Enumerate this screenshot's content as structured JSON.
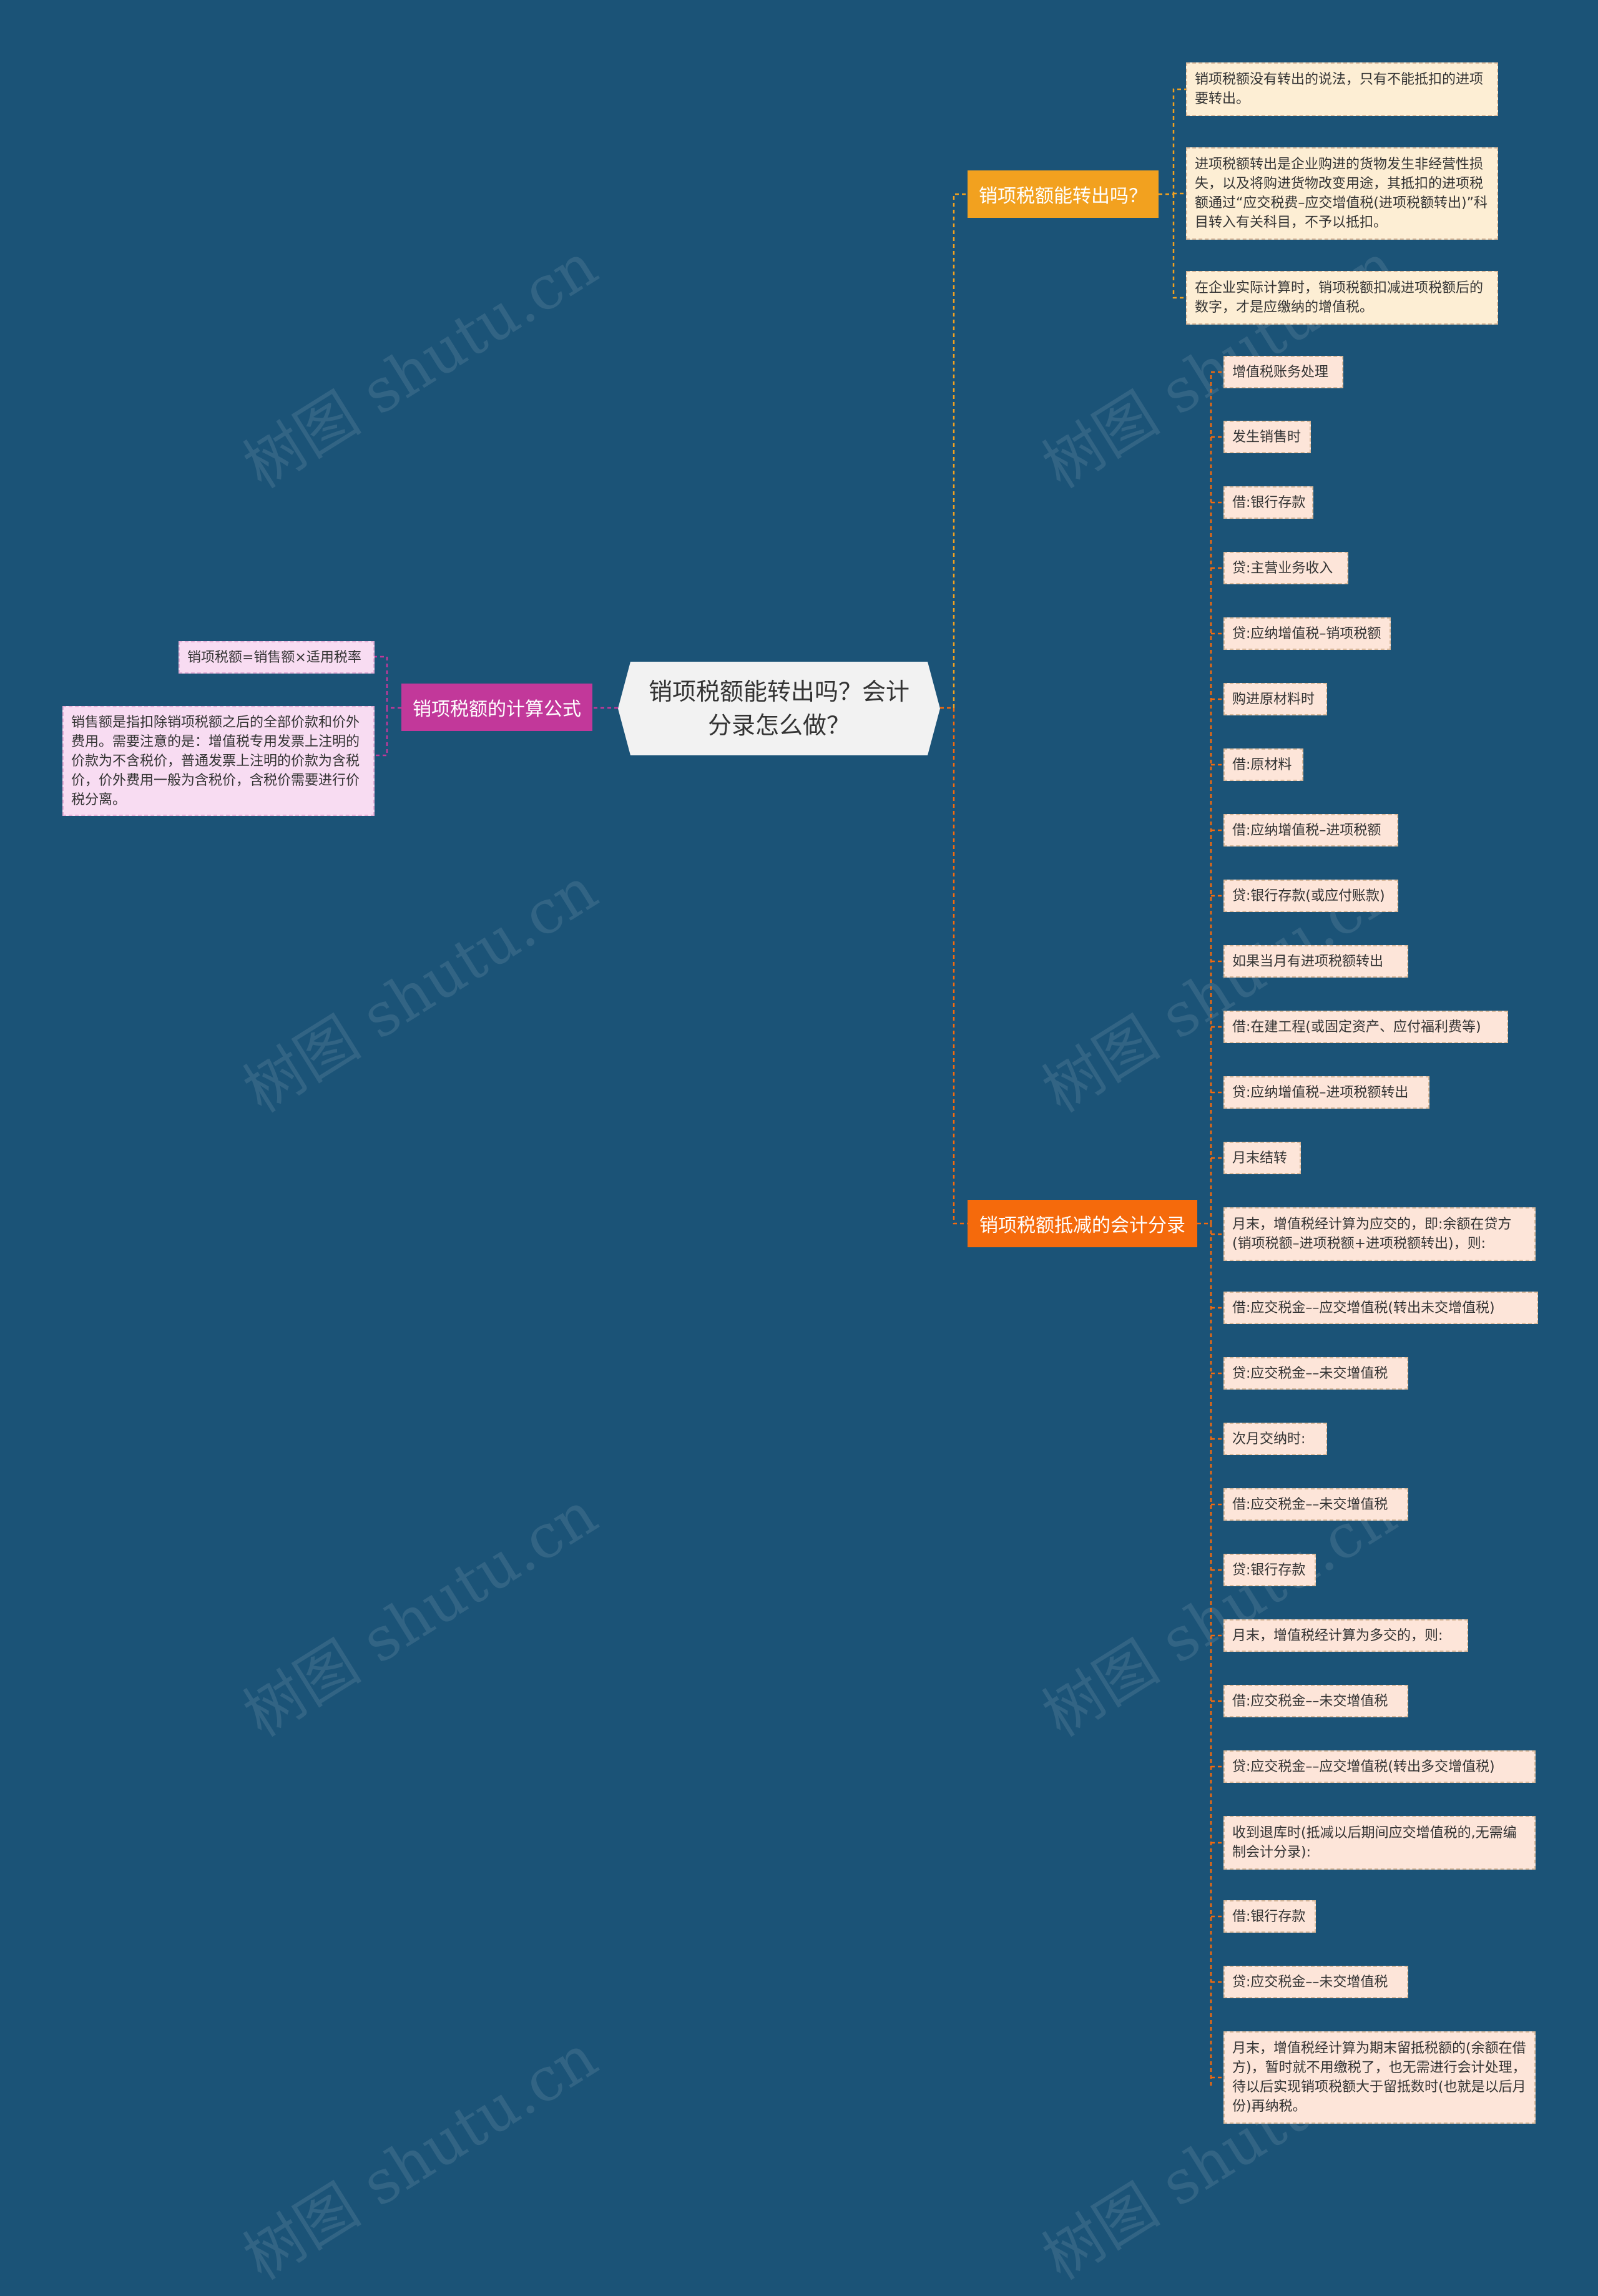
{
  "watermark": "树图 shutu.cn",
  "colors": {
    "background": "#1b5377",
    "root": "#f2f2f2",
    "branch_left": "#c2389a",
    "branch_top": "#f2a11f",
    "branch_bottom": "#f56a0c"
  },
  "root": {
    "text": "销项税额能转出吗？会计分录怎么做？"
  },
  "left_branch": {
    "label": "销项税额的计算公式",
    "leaves": [
      "销项税额=销售额×适用税率",
      "销售额是指扣除销项税额之后的全部价款和价外费用。需要注意的是：增值税专用发票上注明的价款为不含税价，普通发票上注明的价款为含税价，价外费用一般为含税价，含税价需要进行价税分离。"
    ]
  },
  "top_branch": {
    "label": "销项税额能转出吗？",
    "leaves": [
      "销项税额没有转出的说法，只有不能抵扣的进项要转出。",
      "进项税额转出是企业购进的货物发生非经营性损失，以及将购进货物改变用途，其抵扣的进项税额通过“应交税费–应交增值税(进项税额转出)”科目转入有关科目，不予以抵扣。",
      "在企业实际计算时，销项税额扣减进项税额后的数字，才是应缴纳的增值税。"
    ]
  },
  "bottom_branch": {
    "label": "销项税额抵减的会计分录",
    "leaves": [
      "增值税账务处理",
      "发生销售时",
      "借:银行存款",
      "贷:主营业务收入",
      "贷:应纳增值税–销项税额",
      "购进原材料时",
      "借:原材料",
      "借:应纳增值税–进项税额",
      "贷:银行存款(或应付账款)",
      "如果当月有进项税额转出",
      "借:在建工程(或固定资产、应付福利费等)",
      "贷:应纳增值税–进项税额转出",
      "月末结转",
      "月末，增值税经计算为应交的，即:余额在贷方(销项税额–进项税额+进项税额转出)，则:",
      "借:应交税金––应交增值税(转出未交增值税)",
      "贷:应交税金––未交增值税",
      "次月交纳时:",
      "借:应交税金––未交增值税",
      "贷:银行存款",
      "月末，增值税经计算为多交的，则:",
      "借:应交税金––未交增值税",
      "贷:应交税金––应交增值税(转出多交增值税)",
      "收到退库时(抵减以后期间应交增值税的,无需编制会计分录):",
      "借:银行存款",
      "贷:应交税金––未交增值税",
      "月末，增值税经计算为期末留抵税额的(余额在借方)，暂时就不用缴税了，也无需进行会计处理，待以后实现销项税额大于留抵数时(也就是以后月份)再纳税。"
    ]
  }
}
